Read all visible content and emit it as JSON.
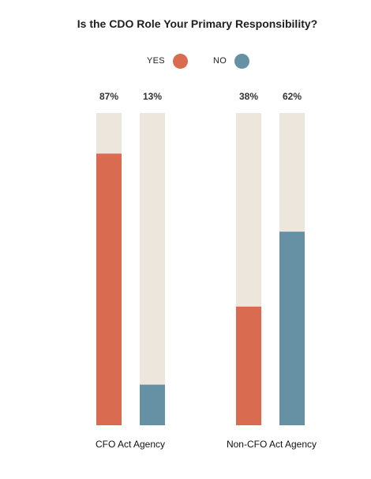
{
  "colors": {
    "yes": "#d96b50",
    "no": "#6691a5",
    "track": "#ece6dd"
  },
  "chart_data": {
    "type": "bar",
    "title": "Is the CDO Role Your Primary Responsibility?",
    "categories": [
      "CFO Act Agency",
      "Non-CFO Act Agency"
    ],
    "series": [
      {
        "name": "YES",
        "values": [
          87,
          38
        ],
        "labels": [
          "87%",
          "38%"
        ]
      },
      {
        "name": "NO",
        "values": [
          13,
          62
        ],
        "labels": [
          "13%",
          "62%"
        ]
      }
    ],
    "ylim": [
      0,
      100
    ],
    "legend_position": "top-center",
    "grid": false
  }
}
